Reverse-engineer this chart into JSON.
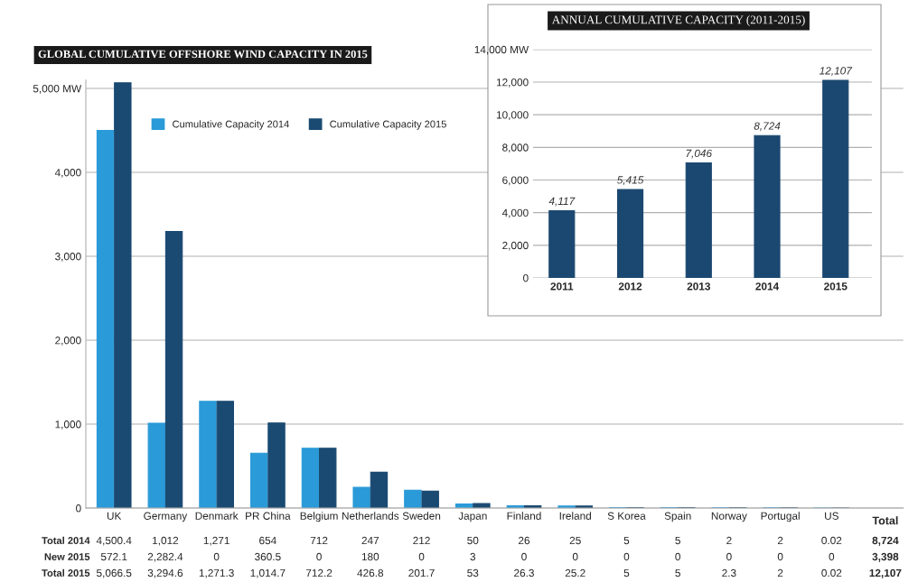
{
  "chart_data": [
    {
      "type": "bar",
      "title": "GLOBAL CUMULATIVE OFFSHORE WIND CAPACITY IN 2015",
      "categories": [
        "UK",
        "Germany",
        "Denmark",
        "PR China",
        "Belgium",
        "Netherlands",
        "Sweden",
        "Japan",
        "Finland",
        "Ireland",
        "S Korea",
        "Spain",
        "Norway",
        "Portugal",
        "US"
      ],
      "series": [
        {
          "name": "Cumulative Capacity 2014",
          "color": "#2a9ad8",
          "values": [
            4500.4,
            1012,
            1271,
            654,
            712,
            247,
            212,
            50,
            26,
            25,
            5,
            5,
            2,
            2,
            0.02
          ],
          "value_labels": [
            "4,500.4",
            "1,012",
            "1,271",
            "654",
            "712",
            "247",
            "212",
            "50",
            "26",
            "25",
            "5",
            "5",
            "2",
            "2",
            "0.02"
          ]
        },
        {
          "name": "Cumulative Capacity 2015",
          "color": "#1a4a72",
          "values": [
            5066.5,
            3294.6,
            1271.3,
            1014.7,
            712.2,
            426.8,
            201.7,
            53,
            26.3,
            25.2,
            5,
            5,
            2.3,
            2,
            0.02
          ],
          "value_labels": [
            "5,066.5",
            "3,294.6",
            "1,271.3",
            "1,014.7",
            "712.2",
            "426.8",
            "201.7",
            "53",
            "26.3",
            "25.2",
            "5",
            "5",
            "2.3",
            "2",
            "0.02"
          ]
        }
      ],
      "annotations": [
        "Total 2014",
        "New 2015",
        "Total 2015",
        "Total",
        "8,724",
        "3,398",
        "12,107",
        "572.1",
        "2,282.4",
        "0",
        "360.5",
        "0",
        "180",
        "0",
        "3",
        "0",
        "0",
        "0",
        "0",
        "0",
        "0",
        "0"
      ],
      "ylim": [
        0,
        5100
      ],
      "yticks": [
        0,
        {
          "value": 1000,
          "label": "1,000"
        },
        {
          "value": 2000,
          "label": "2,000"
        },
        {
          "value": 3000,
          "label": "3,000"
        },
        {
          "value": 4000,
          "label": "4,000"
        },
        {
          "value": 5000,
          "label": "5,000 MW"
        }
      ],
      "grid": "y",
      "legend": "top left"
    },
    {
      "type": "bar",
      "title": "ANNUAL CUMULATIVE CAPACITY (2011-2015)",
      "categories": [
        "2011",
        "2012",
        "2013",
        "2014",
        "2015"
      ],
      "values": [
        4117,
        5415,
        7046,
        8724,
        12107
      ],
      "color": "#1b4870",
      "value_labels": [
        "4,117",
        "5,415",
        "7,046",
        "8,724",
        "12,107"
      ],
      "ylim": [
        0,
        14000
      ],
      "yticks": [
        0,
        {
          "value": 2000,
          "label": "2,000"
        },
        {
          "value": 4000,
          "label": "4,000"
        },
        {
          "value": 6000,
          "label": "6,000"
        },
        {
          "value": 8000,
          "label": "8,000"
        },
        {
          "value": 10000,
          "label": "10,000"
        },
        {
          "value": 12000,
          "label": "12,000"
        },
        {
          "value": 14000,
          "label": "14,000 MW"
        }
      ],
      "grid": "y"
    }
  ]
}
